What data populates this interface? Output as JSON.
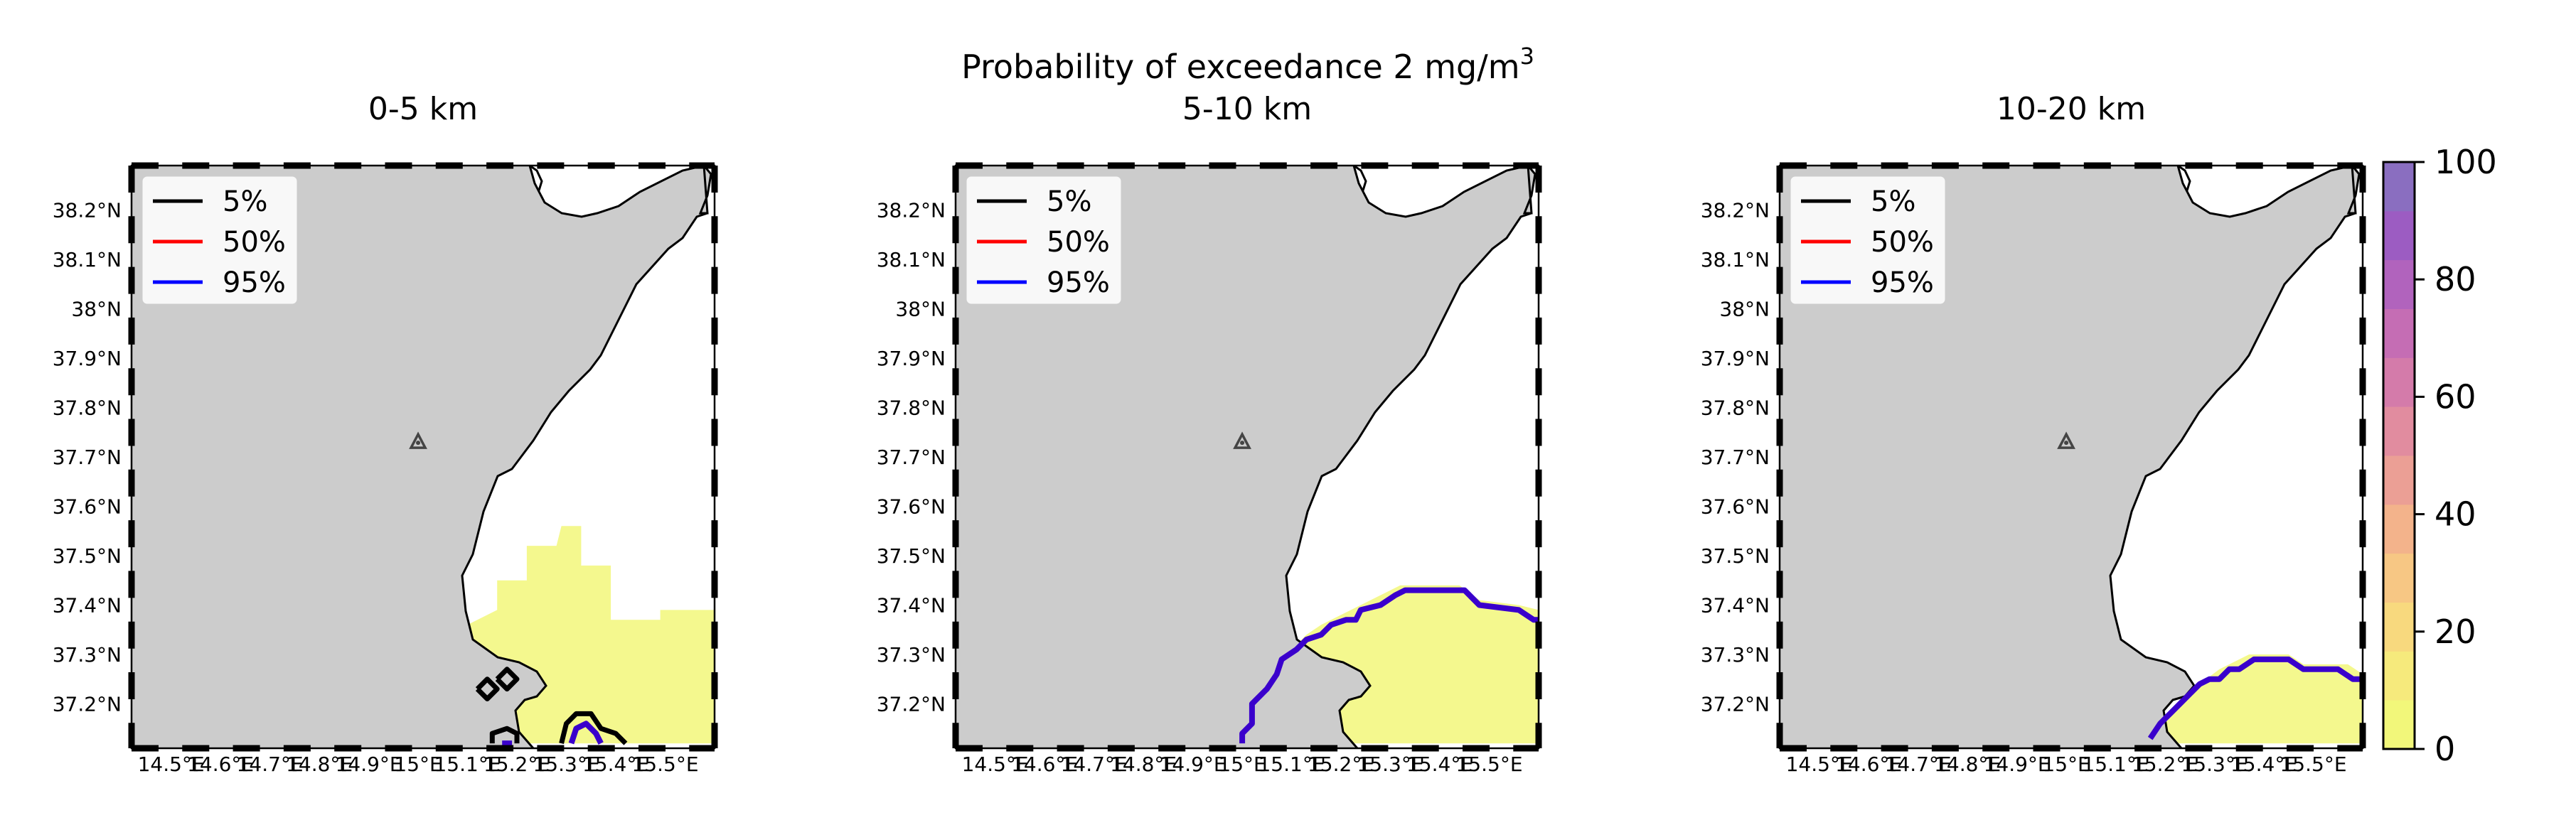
{
  "figure": {
    "suptitle_main": "Probability of exceedance 2 mg/m",
    "suptitle_sup": "3"
  },
  "colors": {
    "land": "#cccccc",
    "coast": "#000000",
    "p5": "#000000",
    "p50": "#ff0000",
    "p95": "#0000ff",
    "overlap_line": "#3a00cc",
    "low_fill": "#f2f77a",
    "volcano": "#444444"
  },
  "chart_data": [
    {
      "type": "heatmap",
      "title": "0-5 km",
      "xlim": [
        14.42,
        15.6
      ],
      "ylim": [
        37.11,
        38.29
      ],
      "xticks": [
        "14.5°E",
        "14.6°E",
        "14.7°E",
        "14.8°E",
        "14.9°E",
        "15°E",
        "15.1°E",
        "15.2°E",
        "15.3°E",
        "15.4°E",
        "15.5°E"
      ],
      "yticks": [
        "37.2°N",
        "37.3°N",
        "37.4°N",
        "37.5°N",
        "37.6°N",
        "37.7°N",
        "37.8°N",
        "37.9°N",
        "38°N",
        "38.1°N",
        "38.2°N"
      ],
      "legend": [
        "5%",
        "50%",
        "95%"
      ],
      "legend_position": "upper-left",
      "probability_region": [
        [
          14.9,
          37.21
        ],
        [
          14.9,
          37.26
        ],
        [
          14.97,
          37.26
        ],
        [
          15.04,
          37.36
        ],
        [
          15.1,
          37.36
        ],
        [
          15.16,
          37.39
        ],
        [
          15.16,
          37.45
        ],
        [
          15.22,
          37.45
        ],
        [
          15.22,
          37.52
        ],
        [
          15.28,
          37.52
        ],
        [
          15.29,
          37.56
        ],
        [
          15.33,
          37.56
        ],
        [
          15.33,
          37.48
        ],
        [
          15.39,
          37.48
        ],
        [
          15.39,
          37.37
        ],
        [
          15.49,
          37.37
        ],
        [
          15.49,
          37.39
        ],
        [
          15.6,
          37.39
        ],
        [
          15.6,
          37.12
        ],
        [
          14.93,
          37.12
        ],
        [
          14.93,
          37.21
        ]
      ],
      "contour_5pct": [
        [
          [
            15.12,
            37.23
          ],
          [
            15.14,
            37.25
          ],
          [
            15.16,
            37.23
          ],
          [
            15.14,
            37.21
          ],
          [
            15.12,
            37.23
          ]
        ],
        [
          [
            15.16,
            37.25
          ],
          [
            15.18,
            37.27
          ],
          [
            15.2,
            37.25
          ],
          [
            15.18,
            37.23
          ],
          [
            15.16,
            37.25
          ]
        ],
        [
          [
            15.15,
            37.12
          ],
          [
            15.15,
            37.14
          ],
          [
            15.18,
            37.15
          ],
          [
            15.2,
            37.14
          ],
          [
            15.2,
            37.12
          ]
        ],
        [
          [
            15.29,
            37.12
          ],
          [
            15.3,
            37.16
          ],
          [
            15.32,
            37.18
          ],
          [
            15.35,
            37.18
          ],
          [
            15.37,
            37.15
          ],
          [
            15.4,
            37.14
          ],
          [
            15.42,
            37.12
          ]
        ]
      ],
      "contour_95pct": [
        [
          [
            15.17,
            37.12
          ],
          [
            15.19,
            37.12
          ]
        ],
        [
          [
            15.31,
            37.12
          ],
          [
            15.32,
            37.15
          ],
          [
            15.34,
            37.16
          ],
          [
            15.36,
            37.14
          ],
          [
            15.37,
            37.12
          ]
        ]
      ]
    },
    {
      "type": "heatmap",
      "title": "5-10 km",
      "xlim": [
        14.42,
        15.6
      ],
      "ylim": [
        37.11,
        38.29
      ],
      "xticks": [
        "14.5°E",
        "14.6°E",
        "14.7°E",
        "14.8°E",
        "14.9°E",
        "15°E",
        "15.1°E",
        "15.2°E",
        "15.3°E",
        "15.4°E",
        "15.5°E"
      ],
      "yticks": [
        "37.2°N",
        "37.3°N",
        "37.4°N",
        "37.5°N",
        "37.6°N",
        "37.7°N",
        "37.8°N",
        "37.9°N",
        "38°N",
        "38.1°N",
        "38.2°N"
      ],
      "legend": [
        "5%",
        "50%",
        "95%"
      ],
      "legend_position": "upper-left",
      "probability_region": [
        [
          15.0,
          37.12
        ],
        [
          15.0,
          37.16
        ],
        [
          15.02,
          37.18
        ],
        [
          15.02,
          37.2
        ],
        [
          15.06,
          37.25
        ],
        [
          15.08,
          37.29
        ],
        [
          15.1,
          37.31
        ],
        [
          15.13,
          37.34
        ],
        [
          15.16,
          37.36
        ],
        [
          15.2,
          37.38
        ],
        [
          15.24,
          37.4
        ],
        [
          15.28,
          37.42
        ],
        [
          15.32,
          37.44
        ],
        [
          15.44,
          37.44
        ],
        [
          15.48,
          37.41
        ],
        [
          15.56,
          37.4
        ],
        [
          15.6,
          37.39
        ],
        [
          15.6,
          37.12
        ]
      ],
      "contour_95pct": [
        [
          [
            15.0,
            37.12
          ],
          [
            15.0,
            37.14
          ],
          [
            15.02,
            37.16
          ],
          [
            15.02,
            37.2
          ],
          [
            15.05,
            37.23
          ],
          [
            15.07,
            37.26
          ],
          [
            15.08,
            37.29
          ],
          [
            15.11,
            37.31
          ],
          [
            15.13,
            37.33
          ],
          [
            15.16,
            37.34
          ],
          [
            15.18,
            37.36
          ],
          [
            15.21,
            37.37
          ],
          [
            15.23,
            37.37
          ],
          [
            15.24,
            37.39
          ],
          [
            15.28,
            37.4
          ],
          [
            15.31,
            37.42
          ],
          [
            15.33,
            37.43
          ],
          [
            15.45,
            37.43
          ],
          [
            15.48,
            37.4
          ],
          [
            15.56,
            37.39
          ],
          [
            15.59,
            37.37
          ],
          [
            15.6,
            37.37
          ]
        ]
      ]
    },
    {
      "type": "heatmap",
      "title": "10-20 km",
      "xlim": [
        14.42,
        15.6
      ],
      "ylim": [
        37.11,
        38.29
      ],
      "xticks": [
        "14.5°E",
        "14.6°E",
        "14.7°E",
        "14.8°E",
        "14.9°E",
        "15°E",
        "15.1°E",
        "15.2°E",
        "15.3°E",
        "15.4°E",
        "15.5°E"
      ],
      "yticks": [
        "37.2°N",
        "37.3°N",
        "37.4°N",
        "37.5°N",
        "37.6°N",
        "37.7°N",
        "37.8°N",
        "37.9°N",
        "38°N",
        "38.1°N",
        "38.2°N"
      ],
      "legend": [
        "5%",
        "50%",
        "95%"
      ],
      "legend_position": "upper-left",
      "probability_region": [
        [
          15.17,
          37.12
        ],
        [
          15.2,
          37.16
        ],
        [
          15.23,
          37.2
        ],
        [
          15.27,
          37.24
        ],
        [
          15.31,
          37.27
        ],
        [
          15.33,
          37.28
        ],
        [
          15.37,
          37.3
        ],
        [
          15.45,
          37.3
        ],
        [
          15.48,
          37.28
        ],
        [
          15.57,
          37.28
        ],
        [
          15.6,
          37.26
        ],
        [
          15.6,
          37.12
        ]
      ],
      "contour_95pct": [
        [
          [
            15.17,
            37.13
          ],
          [
            15.19,
            37.16
          ],
          [
            15.21,
            37.18
          ],
          [
            15.23,
            37.2
          ],
          [
            15.25,
            37.22
          ],
          [
            15.27,
            37.24
          ],
          [
            15.29,
            37.25
          ],
          [
            15.31,
            37.25
          ],
          [
            15.33,
            37.27
          ],
          [
            15.35,
            37.27
          ],
          [
            15.38,
            37.29
          ],
          [
            15.45,
            37.29
          ],
          [
            15.48,
            37.27
          ],
          [
            15.55,
            37.27
          ],
          [
            15.58,
            37.25
          ],
          [
            15.6,
            37.25
          ]
        ]
      ]
    }
  ],
  "colorbar": {
    "ticks": [
      "0",
      "20",
      "40",
      "60",
      "80",
      "100"
    ],
    "range": [
      0,
      100
    ],
    "colors": [
      "#f2f77a",
      "#f6ea7c",
      "#f8d97e",
      "#f7c784",
      "#f3b38b",
      "#eb9f95",
      "#e18c9f",
      "#d47baa",
      "#c56db4",
      "#b163bd",
      "#9c5cc2",
      "#8a6ec0"
    ]
  },
  "volcano": {
    "lon": 15.0,
    "lat": 37.73
  }
}
